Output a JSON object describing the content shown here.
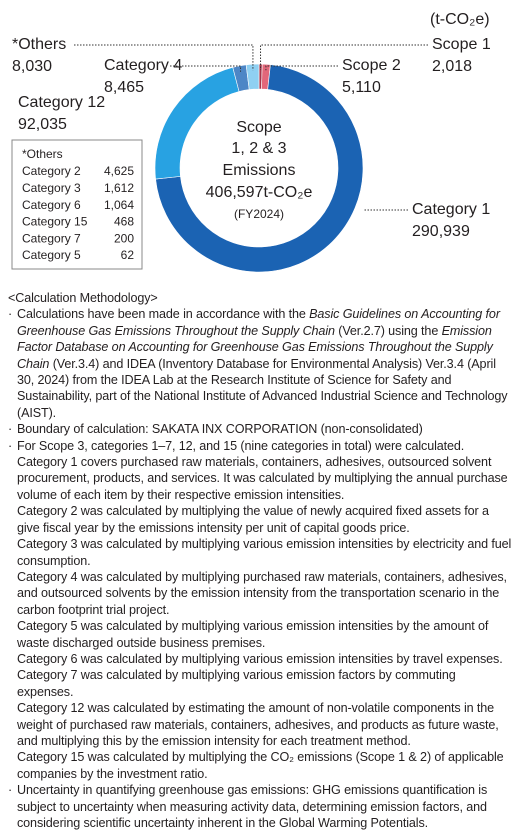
{
  "chart_data": {
    "type": "donut",
    "unit": "(t-CO₂e)",
    "center_lines": [
      "Scope",
      "1, 2 & 3",
      "Emissions",
      "406,597t-CO₂e",
      "(FY2024)"
    ],
    "categories": [
      "Scope 1",
      "Scope 2",
      "Category 1",
      "Category 12",
      "Category 4",
      "*Others"
    ],
    "values": [
      2018,
      5110,
      290939,
      92035,
      8465,
      8030
    ],
    "value_labels": [
      "2,018",
      "5,110",
      "290,939",
      "92,035",
      "8,465",
      "8,030"
    ],
    "colors": [
      "#a6344a",
      "#e2677a",
      "#1b63b3",
      "#28a2e2",
      "#4d86c6",
      "#8fd0f2"
    ],
    "breakdown": {
      "title": "*Others",
      "rows": [
        [
          "Category 2",
          "4,625"
        ],
        [
          "Category 3",
          "1,612"
        ],
        [
          "Category 6",
          "1,064"
        ],
        [
          "Category 15",
          "468"
        ],
        [
          "Category 7",
          "200"
        ],
        [
          "Category 5",
          "62"
        ]
      ]
    }
  },
  "methodology": {
    "heading": "<Calculation Methodology>",
    "items": [
      {
        "runs": [
          {
            "text": "Calculations have been made in accordance with the "
          },
          {
            "text": "Basic Guidelines on Accounting for Greenhouse Gas Emissions Throughout the Supply Chain",
            "italic": true
          },
          {
            "text": " (Ver.2.7) using the "
          },
          {
            "text": "Emission Factor Database on Accounting for Greenhouse Gas Emissions Throughout the Supply Chain",
            "italic": true
          },
          {
            "text": " (Ver.3.4) and IDEA (Inventory Database for Environmental Analysis) Ver.3.4 (April 30, 2024) from the IDEA Lab at the Research Institute of Science for Safety and Sustainability, part of the National Institute of Advanced Industrial Science and Technology (AIST)."
          }
        ]
      },
      {
        "runs": [
          {
            "text": "Boundary of calculation: SAKATA INX CORPORATION (non-consolidated)"
          }
        ]
      },
      {
        "runs": [
          {
            "text": "For Scope 3, categories 1–7, 12, and 15 (nine categories in total) were calculated."
          }
        ],
        "details": [
          "Category 1 covers purchased raw materials, containers, adhesives, outsourced solvent procurement, products, and services. It was calculated by multiplying the annual purchase volume of each item by their respective emission intensities.",
          "Category 2 was calculated by multiplying the value of newly acquired fixed assets for a give fiscal year by the emissions intensity per unit of capital goods price.",
          "Category 3 was calculated by multiplying various emission intensities by electricity and fuel consumption.",
          "Category 4 was calculated by multiplying purchased raw materials, containers, adhesives, and outsourced solvents by the emission intensity from the transportation scenario in the carbon footprint trial project.",
          "Category 5 was calculated by multiplying various emission intensities by the amount of waste discharged outside business premises.",
          "Category 6 was calculated by multiplying various emission intensities by travel expenses.",
          "Category 7 was calculated by multiplying various emission factors by commuting expenses.",
          "Category 12 was calculated by estimating the amount of non-volatile components in the weight of purchased raw materials, containers, adhesives, and products as future waste, and multiplying this by the emission intensity for each treatment method.",
          "Category 15 was calculated by multiplying the CO₂ emissions (Scope 1 & 2) of applicable companies by the investment ratio."
        ]
      },
      {
        "runs": [
          {
            "text": "Uncertainty in quantifying greenhouse gas emissions: GHG emissions quantification is subject to uncertainty when measuring activity data, determining emission factors, and considering scientific uncertainty inherent in the Global Warming Potentials."
          }
        ]
      }
    ]
  }
}
